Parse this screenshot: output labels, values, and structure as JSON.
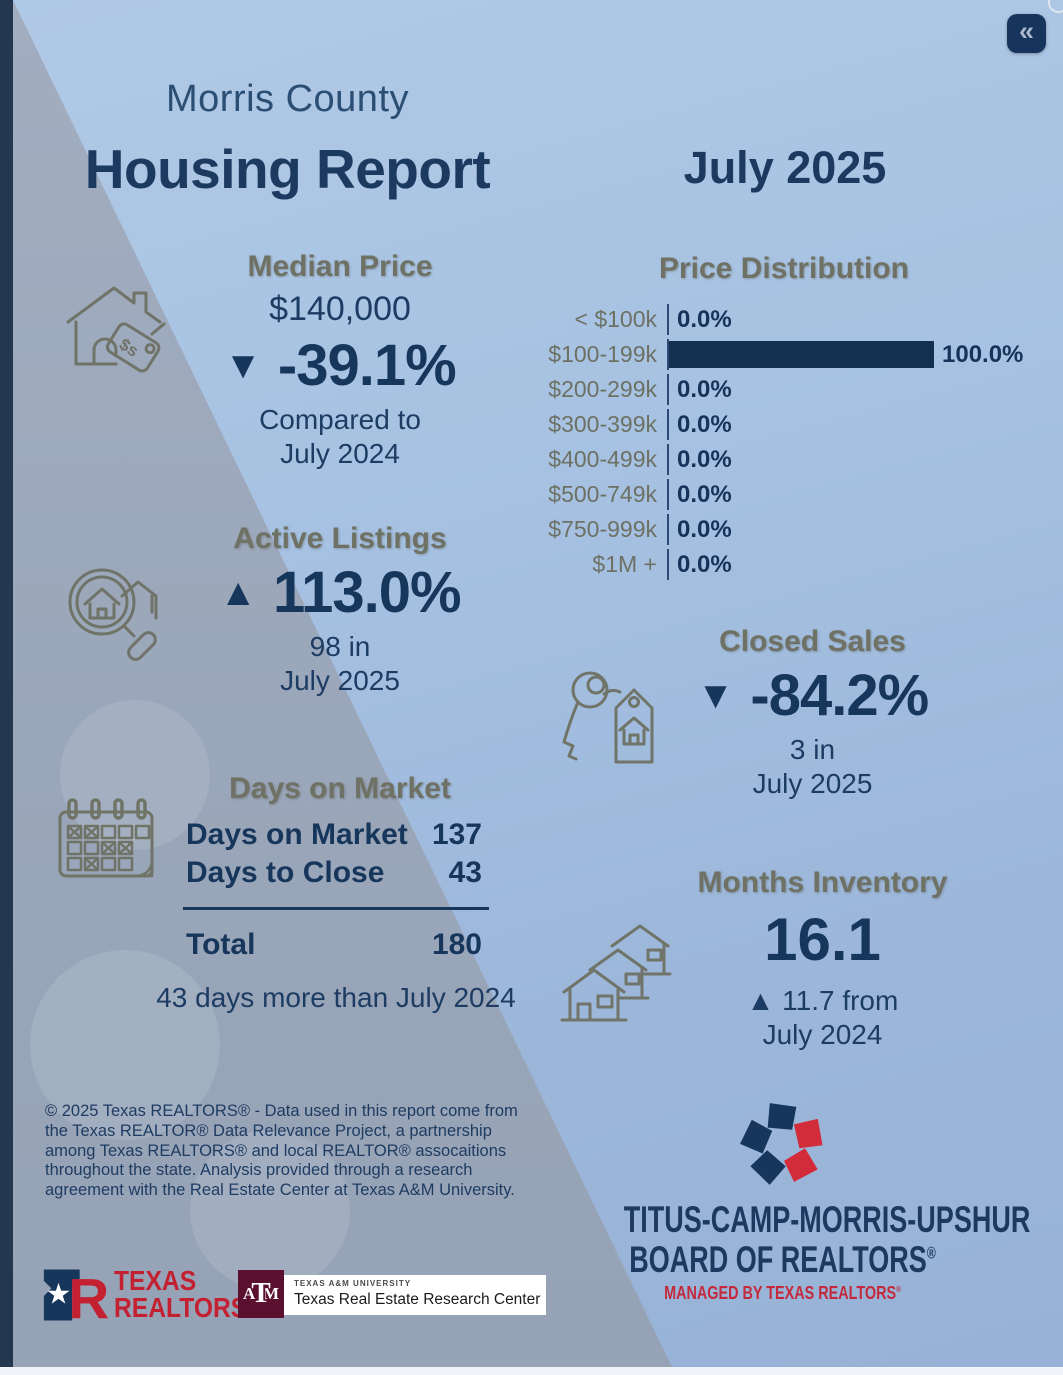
{
  "colors": {
    "navy": "#17365c",
    "olive_heading": "#6e7163",
    "bar_navy": "#12304f",
    "red_accent": "#c4293b",
    "tamu_maroon": "#5a102e",
    "bg_light": "#a7c2e2",
    "bg_wedge": "#9aa6b9"
  },
  "collapse_button": {
    "glyph": "«"
  },
  "header": {
    "county": "Morris County",
    "title": "Housing Report",
    "period": "July 2025"
  },
  "median_price": {
    "title": "Median Price",
    "value": "$140,000",
    "arrow": "▼",
    "change": "-39.1%",
    "note_line1": "Compared to",
    "note_line2": "July 2024"
  },
  "chart_data": {
    "type": "bar",
    "orientation": "horizontal",
    "title": "Price Distribution",
    "categories": [
      "< $100k",
      "$100-199k",
      "$200-299k",
      "$300-399k",
      "$400-499k",
      "$500-749k",
      "$750-999k",
      "$1M +"
    ],
    "values": [
      0.0,
      100.0,
      0.0,
      0.0,
      0.0,
      0.0,
      0.0,
      0.0
    ],
    "value_labels": [
      "0.0%",
      "100.0%",
      "0.0%",
      "0.0%",
      "0.0%",
      "0.0%",
      "0.0%",
      "0.0%"
    ],
    "xlim": [
      0,
      100
    ],
    "bar_color": "#12304f",
    "label_color": "#6d7164",
    "grid": false,
    "legend": false
  },
  "active_listings": {
    "title": "Active Listings",
    "arrow": "▲",
    "change": "113.0%",
    "count_line1": "98 in",
    "count_line2": "July 2025"
  },
  "closed_sales": {
    "title": "Closed Sales",
    "arrow": "▼",
    "change": "-84.2%",
    "count_line1": "3 in",
    "count_line2": "July 2025"
  },
  "days_on_market": {
    "title": "Days on Market",
    "row1_label": "Days on Market",
    "row1_value": "137",
    "row2_label": "Days to Close",
    "row2_value": "43",
    "total_label": "Total",
    "total_value": "180",
    "note": "43 days more than July 2024"
  },
  "months_inventory": {
    "title": "Months Inventory",
    "value": "16.1",
    "change_line1": "▲ 11.7 from",
    "change_line2": "July 2024"
  },
  "footer": {
    "disclaimer": "© 2025 Texas REALTORS® - Data used in this report come from the Texas REALTOR® Data Relevance Project, a partnership among Texas REALTORS® and local REALTOR® assocaitions throughout the state. Analysis provided through a research agreement with the Real Estate Center at Texas A&M University."
  },
  "board_logo": {
    "line1": "TITUS-CAMP-MORRIS-UPSHUR",
    "line2": "BOARD OF REALTORS",
    "registered": "®",
    "tagline": "MANAGED BY TEXAS REALTORS"
  },
  "texas_realtors_logo": {
    "line1": "TEXAS",
    "line2": "REALTORS",
    "registered": "®"
  },
  "tamu_logo": {
    "university": "TEXAS A&M UNIVERSITY",
    "center": "Texas Real Estate Research Center",
    "monogram_a": "A",
    "monogram_t": "T",
    "monogram_m": "M"
  }
}
